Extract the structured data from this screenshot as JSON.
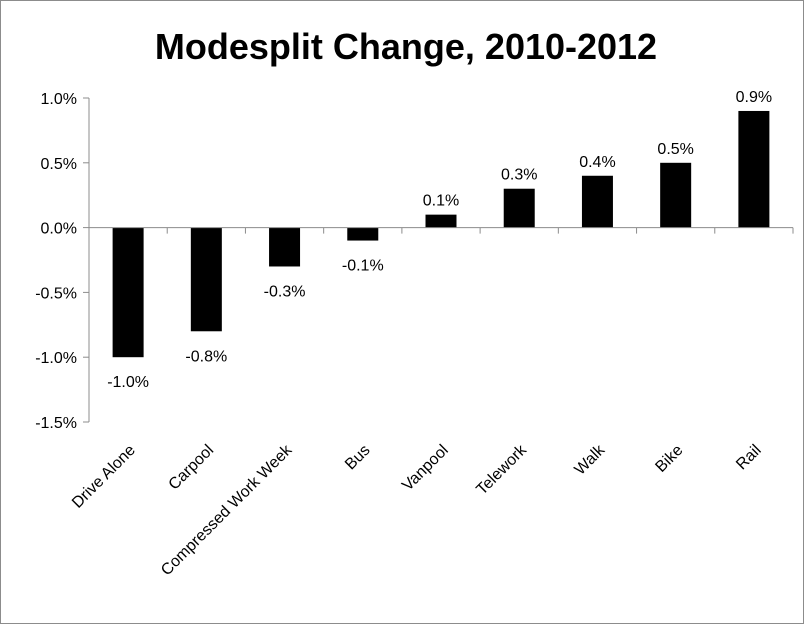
{
  "chart_data": {
    "type": "bar",
    "title": "Modesplit Change, 2010-2012",
    "xlabel": "",
    "ylabel": "",
    "categories": [
      "Drive Alone",
      "Carpool",
      "Compressed Work Week",
      "Bus",
      "Vanpool",
      "Telework",
      "Walk",
      "Bike",
      "Rail"
    ],
    "values": [
      -1.0,
      -0.8,
      -0.3,
      -0.1,
      0.1,
      0.3,
      0.4,
      0.5,
      0.9
    ],
    "data_labels": [
      "-1.0%",
      "-0.8%",
      "-0.3%",
      "-0.1%",
      "0.1%",
      "0.3%",
      "0.4%",
      "0.5%",
      "0.9%"
    ],
    "ylim": [
      -1.5,
      1.0
    ],
    "yticks": [
      1.0,
      0.5,
      0.0,
      -0.5,
      -1.0,
      -1.5
    ],
    "ytick_labels": [
      "1.0%",
      "0.5%",
      "0.0%",
      "-0.5%",
      "-1.0%",
      "-1.5%"
    ],
    "grid": false,
    "legend": "none",
    "bar_color": "#000000"
  }
}
